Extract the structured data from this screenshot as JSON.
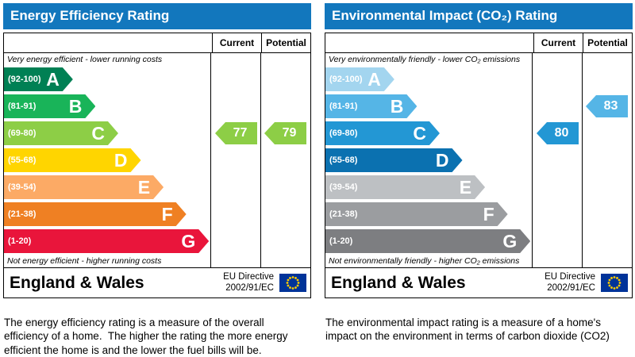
{
  "panels": [
    {
      "title": "Energy Efficiency Rating",
      "columns": {
        "current": "Current",
        "potential": "Potential"
      },
      "top_note": "Very energy efficient - lower running costs",
      "bottom_note": "Not energy efficient - higher running costs",
      "bands": [
        {
          "letter": "A",
          "range": "(92-100)",
          "min": 92,
          "max": 100,
          "color": "#008054"
        },
        {
          "letter": "B",
          "range": "(81-91)",
          "min": 81,
          "max": 91,
          "color": "#19b459"
        },
        {
          "letter": "C",
          "range": "(69-80)",
          "min": 69,
          "max": 80,
          "color": "#8dce46"
        },
        {
          "letter": "D",
          "range": "(55-68)",
          "min": 55,
          "max": 68,
          "color": "#ffd500"
        },
        {
          "letter": "E",
          "range": "(39-54)",
          "min": 39,
          "max": 54,
          "color": "#fcaa65"
        },
        {
          "letter": "F",
          "range": "(21-38)",
          "min": 21,
          "max": 38,
          "color": "#ef8023"
        },
        {
          "letter": "G",
          "range": "(1-20)",
          "min": 1,
          "max": 20,
          "color": "#e9153b"
        }
      ],
      "current": {
        "value": 77
      },
      "potential": {
        "value": 79
      },
      "footer": {
        "region": "England & Wales",
        "directive_line1": "EU Directive",
        "directive_line2": "2002/91/EC"
      },
      "description": "The energy efficiency rating is a measure of the overall efficiency of a home.  The higher the rating the more energy efficient the home is and the lower the fuel bills will be."
    },
    {
      "title": "Environmental Impact (CO₂) Rating",
      "columns": {
        "current": "Current",
        "potential": "Potential"
      },
      "top_note": "Very environmentally friendly - lower CO₂ emissions",
      "bottom_note": "Not environmentally friendly - higher CO₂ emissions",
      "bands": [
        {
          "letter": "A",
          "range": "(92-100)",
          "min": 92,
          "max": 100,
          "color": "#a3d5ef"
        },
        {
          "letter": "B",
          "range": "(81-91)",
          "min": 81,
          "max": 91,
          "color": "#55b5e6"
        },
        {
          "letter": "C",
          "range": "(69-80)",
          "min": 69,
          "max": 80,
          "color": "#2397d4"
        },
        {
          "letter": "D",
          "range": "(55-68)",
          "min": 55,
          "max": 68,
          "color": "#0b71b0"
        },
        {
          "letter": "E",
          "range": "(39-54)",
          "min": 39,
          "max": 54,
          "color": "#bdc0c3"
        },
        {
          "letter": "F",
          "range": "(21-38)",
          "min": 21,
          "max": 38,
          "color": "#9b9da0"
        },
        {
          "letter": "G",
          "range": "(1-20)",
          "min": 1,
          "max": 20,
          "color": "#7d7e81"
        }
      ],
      "current": {
        "value": 80
      },
      "potential": {
        "value": 83
      },
      "footer": {
        "region": "England & Wales",
        "directive_line1": "EU Directive",
        "directive_line2": "2002/91/EC"
      },
      "description": "The environmental impact rating is a measure of a home's impact on the environment in terms of carbon dioxide (CO2)"
    }
  ],
  "chart_data": [
    {
      "type": "bar",
      "title": "Energy Efficiency Rating",
      "categories": [
        "A",
        "B",
        "C",
        "D",
        "E",
        "F",
        "G"
      ],
      "band_ranges": [
        "92-100",
        "81-91",
        "69-80",
        "55-68",
        "39-54",
        "21-38",
        "1-20"
      ],
      "series": [
        {
          "name": "Current",
          "values": [
            77
          ],
          "band": "C"
        },
        {
          "name": "Potential",
          "values": [
            79
          ],
          "band": "C"
        }
      ],
      "scale_min": 1,
      "scale_max": 100,
      "notes": [
        "Very energy efficient - lower running costs",
        "Not energy efficient - higher running costs"
      ],
      "legend_position": "none"
    },
    {
      "type": "bar",
      "title": "Environmental Impact (CO₂) Rating",
      "categories": [
        "A",
        "B",
        "C",
        "D",
        "E",
        "F",
        "G"
      ],
      "band_ranges": [
        "92-100",
        "81-91",
        "69-80",
        "55-68",
        "39-54",
        "21-38",
        "1-20"
      ],
      "series": [
        {
          "name": "Current",
          "values": [
            80
          ],
          "band": "C"
        },
        {
          "name": "Potential",
          "values": [
            83
          ],
          "band": "B"
        }
      ],
      "scale_min": 1,
      "scale_max": 100,
      "notes": [
        "Very environmentally friendly - lower CO₂ emissions",
        "Not environmentally friendly - higher CO₂ emissions"
      ],
      "legend_position": "none"
    }
  ]
}
